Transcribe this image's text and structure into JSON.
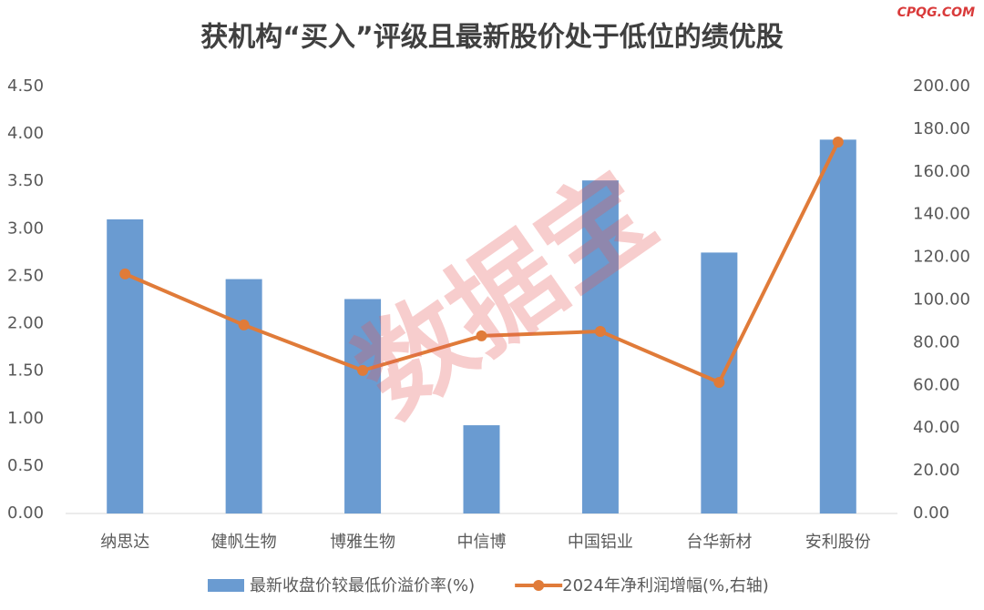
{
  "chart_data": {
    "type": "bar-line",
    "title": "获机构“买入”评级且最新股价处于低位的绩优股",
    "source": "CPQG.COM",
    "watermark": "数据宝",
    "categories": [
      "纳思达",
      "健帆生物",
      "博雅生物",
      "中信博",
      "中国铝业",
      "台华新材",
      "安利股份"
    ],
    "series": [
      {
        "name": "最新收盘价较最低价溢价率(%)",
        "type": "bar",
        "color": "#6a9bd1",
        "values": [
          3.1,
          2.47,
          2.26,
          0.93,
          3.51,
          2.75,
          3.94
        ]
      },
      {
        "name": "2024年净利润增幅(%,右轴)",
        "type": "line",
        "axis": "y2",
        "color": "#e07b39",
        "values": [
          112.2,
          88.3,
          67.0,
          83.2,
          85.3,
          61.4,
          174.0
        ]
      }
    ],
    "ylim": [
      0,
      4.5
    ],
    "yticks": [
      {
        "value": 0,
        "label": "0.00"
      },
      {
        "value": 0.5,
        "label": "0.50"
      },
      {
        "value": 1,
        "label": "1.00"
      },
      {
        "value": 1.5,
        "label": "1.50"
      },
      {
        "value": 2,
        "label": "2.00"
      },
      {
        "value": 2.5,
        "label": "2.50"
      },
      {
        "value": 3,
        "label": "3.00"
      },
      {
        "value": 3.5,
        "label": "3.50"
      },
      {
        "value": 4,
        "label": "4.00"
      },
      {
        "value": 4.5,
        "label": "4.50"
      }
    ],
    "y2lim": [
      0,
      200
    ],
    "y2ticks": [
      {
        "value": 0,
        "label": "0.00"
      },
      {
        "value": 20,
        "label": "20.00"
      },
      {
        "value": 40,
        "label": "40.00"
      },
      {
        "value": 60,
        "label": "60.00"
      },
      {
        "value": 80,
        "label": "80.00"
      },
      {
        "value": 100,
        "label": "100.00"
      },
      {
        "value": 120,
        "label": "120.00"
      },
      {
        "value": 140,
        "label": "140.00"
      },
      {
        "value": 160,
        "label": "160.00"
      },
      {
        "value": 180,
        "label": "180.00"
      },
      {
        "value": 200,
        "label": "200.00"
      }
    ],
    "grid": false,
    "legend": "bottom"
  }
}
